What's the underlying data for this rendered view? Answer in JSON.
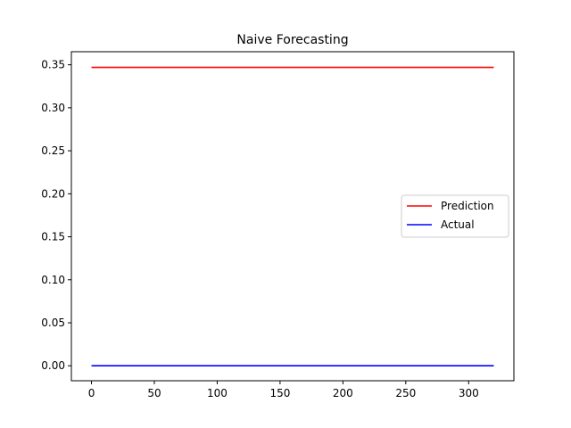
{
  "chart_data": {
    "type": "line",
    "title": "Naive Forecasting",
    "xlabel": "",
    "ylabel": "",
    "xlim": [
      -16,
      336
    ],
    "ylim": [
      -0.0174,
      0.3652
    ],
    "xticks": [
      0,
      50,
      100,
      150,
      200,
      250,
      300
    ],
    "xtick_labels": [
      "0",
      "50",
      "100",
      "150",
      "200",
      "250",
      "300"
    ],
    "yticks": [
      0.0,
      0.05,
      0.1,
      0.15,
      0.2,
      0.25,
      0.3,
      0.35
    ],
    "ytick_labels": [
      "0.00",
      "0.05",
      "0.10",
      "0.15",
      "0.20",
      "0.25",
      "0.30",
      "0.35"
    ],
    "grid": false,
    "legend_position": "center-right",
    "series": [
      {
        "name": "Prediction",
        "color": "#ff0000",
        "x": [
          0,
          320
        ],
        "y": [
          0.347,
          0.347
        ]
      },
      {
        "name": "Actual",
        "color": "#0000ff",
        "x": [
          0,
          320
        ],
        "y": [
          0.0,
          0.0
        ]
      }
    ]
  }
}
